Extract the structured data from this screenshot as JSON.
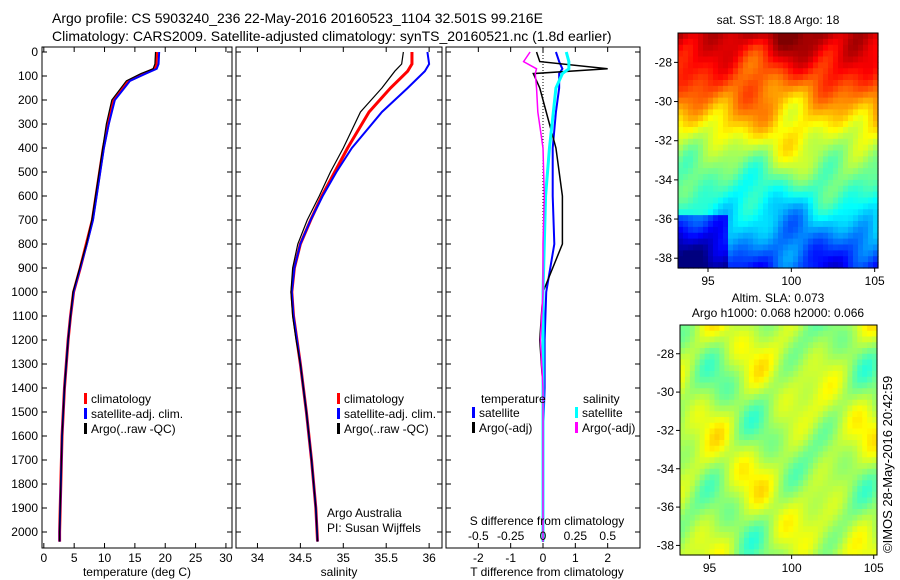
{
  "header": {
    "line1": "Argo profile: CS 5903240_236 22-May-2016 20160523_1104 32.501S 99.216E",
    "line2": "Climatology: CARS2009. Satellite-adjusted climatology: synTS_20160521.nc (1.8d earlier)"
  },
  "credit": "©IMOS 28-May-2016 20:42:59",
  "colors": {
    "climatology": "#ff0000",
    "satellite": "#0000ff",
    "argo": "#000000",
    "sal_satellite": "#00ffff",
    "sal_argo": "#ff00ff"
  },
  "chart_data": [
    {
      "type": "line",
      "name": "temperature",
      "xlabel": "temperature (deg C)",
      "ylabel": "",
      "xlim": [
        -0.3,
        31
      ],
      "ylim": [
        2060,
        0
      ],
      "xticks": [
        "0",
        "5",
        "10",
        "15",
        "20",
        "25",
        "30"
      ],
      "yticks": [
        "0",
        "100",
        "200",
        "300",
        "400",
        "500",
        "600",
        "700",
        "800",
        "900",
        "1000",
        "1100",
        "1200",
        "1300",
        "1400",
        "1500",
        "1600",
        "1700",
        "1800",
        "1900",
        "2000"
      ],
      "legend": [
        "climatology",
        "satellite-adj. clim.",
        "Argo(..raw -QC)"
      ],
      "depth": [
        0,
        50,
        70,
        90,
        120,
        200,
        300,
        400,
        500,
        600,
        700,
        800,
        900,
        1000,
        1100,
        1200,
        1300,
        1400,
        1500,
        1600,
        1800,
        2000,
        2040
      ],
      "series": [
        {
          "name": "climatology",
          "values": [
            18.6,
            18.5,
            18.3,
            16.5,
            14,
            11.5,
            10.6,
            9.8,
            9.2,
            8.6,
            8.0,
            7.0,
            6.0,
            4.9,
            4.4,
            4.0,
            3.7,
            3.4,
            3.2,
            3.0,
            2.8,
            2.6,
            2.6
          ]
        },
        {
          "name": "satellite-adj. clim.",
          "values": [
            19.0,
            18.9,
            18.6,
            16.8,
            14.2,
            11.7,
            10.7,
            9.9,
            9.3,
            8.7,
            8.1,
            7.1,
            6.0,
            4.9,
            4.4,
            4.0,
            3.7,
            3.4,
            3.2,
            3.0,
            2.8,
            2.6,
            2.6
          ]
        },
        {
          "name": "Argo(..raw -QC)",
          "values": [
            18.4,
            18.3,
            18.0,
            16.0,
            13.6,
            11.2,
            10.3,
            9.7,
            9.1,
            8.5,
            7.9,
            7.0,
            5.9,
            4.8,
            4.4,
            4.0,
            3.7,
            3.4,
            3.2,
            3.0,
            2.8,
            2.6,
            2.6
          ]
        }
      ]
    },
    {
      "type": "line",
      "name": "salinity",
      "xlabel": "salinity",
      "xlim": [
        33.75,
        36.15
      ],
      "ylim": [
        2060,
        0
      ],
      "xticks": [
        "34",
        "34.5",
        "35",
        "35.5",
        "36"
      ],
      "legend": [
        "climatology",
        "satellite-adj. clim.",
        "Argo(..raw -QC)"
      ],
      "annotation": [
        "Argo Australia",
        "PI: Susan Wijffels"
      ],
      "depth": [
        0,
        50,
        80,
        150,
        250,
        400,
        500,
        600,
        700,
        800,
        900,
        1000,
        1100,
        1200,
        1300,
        1500,
        1700,
        1900,
        2040
      ],
      "series": [
        {
          "name": "climatology",
          "values": [
            35.8,
            35.8,
            35.75,
            35.55,
            35.3,
            35.05,
            34.9,
            34.75,
            34.62,
            34.5,
            34.43,
            34.4,
            34.42,
            34.46,
            34.5,
            34.57,
            34.63,
            34.68,
            34.7
          ]
        },
        {
          "name": "satellite-adj. clim.",
          "values": [
            35.98,
            36.0,
            35.95,
            35.75,
            35.45,
            35.1,
            34.92,
            34.76,
            34.62,
            34.5,
            34.43,
            34.4,
            34.42,
            34.46,
            34.5,
            34.57,
            34.63,
            34.68,
            34.7
          ]
        },
        {
          "name": "Argo(..raw -QC)",
          "values": [
            35.7,
            35.68,
            35.6,
            35.45,
            35.2,
            35.0,
            34.85,
            34.72,
            34.58,
            34.47,
            34.41,
            34.39,
            34.41,
            34.45,
            34.5,
            34.57,
            34.63,
            34.68,
            34.7
          ]
        }
      ]
    },
    {
      "type": "line",
      "name": "differences",
      "xlabel": "T difference from climatology",
      "x2label": "S difference from climatology",
      "xlim": [
        -3,
        3
      ],
      "x2lim": [
        -0.75,
        0.75
      ],
      "ylim": [
        2060,
        0
      ],
      "xticks": [
        "-2",
        "-1",
        "0",
        "1",
        "2"
      ],
      "x2ticks": [
        "-0.5",
        "-0.25",
        "0",
        "0.25",
        "0.5"
      ],
      "legend_headers": [
        "temperature",
        "salinity"
      ],
      "legend": [
        "satellite",
        "Argo(-adj)",
        "satellite",
        "Argo(-adj)"
      ],
      "depth": [
        0,
        40,
        70,
        90,
        150,
        250,
        400,
        600,
        800,
        1000,
        1200,
        1400,
        1600,
        1800,
        2040
      ],
      "series": [
        {
          "name": "T satellite",
          "values": [
            0.4,
            0.5,
            0.6,
            0.5,
            0.5,
            0.4,
            0.3,
            0.3,
            0.35,
            0.1,
            0.05,
            0.05,
            0.0,
            0.0,
            0.0
          ]
        },
        {
          "name": "T Argo(-adj)",
          "values": [
            -0.2,
            -0.1,
            2.0,
            -0.3,
            -0.1,
            0.1,
            0.4,
            0.6,
            0.6,
            0.0,
            -0.1,
            0.0,
            0.0,
            0.0,
            0.0
          ]
        },
        {
          "name": "S satellite",
          "values": [
            0.18,
            0.2,
            0.2,
            0.15,
            0.1,
            0.08,
            0.05,
            0.02,
            0.01,
            0.0,
            0.0,
            0.0,
            0.0,
            0.0,
            0.0
          ]
        },
        {
          "name": "S Argo(-adj)",
          "values": [
            -0.1,
            -0.15,
            -0.05,
            -0.06,
            -0.05,
            -0.04,
            0.0,
            0.01,
            0.0,
            0.0,
            -0.02,
            0.0,
            0.0,
            0.0,
            0.0
          ]
        }
      ]
    },
    {
      "type": "heatmap",
      "name": "sst-map",
      "title": "sat. SST: 18.8 Argo: 18",
      "xlim": [
        93.2,
        105.2
      ],
      "ylim": [
        -38.5,
        -26.5
      ],
      "xticks": [
        "95",
        "100",
        "105"
      ],
      "yticks": [
        "-28",
        "-30",
        "-32",
        "-34",
        "-36",
        "-38"
      ]
    },
    {
      "type": "heatmap",
      "name": "sla-map",
      "title": "Altim. SLA: 0.073",
      "subtitle": "Argo h1000: 0.068 h2000: 0.066",
      "xlim": [
        93.2,
        105.2
      ],
      "ylim": [
        -38.5,
        -26.5
      ],
      "xticks": [
        "95",
        "100",
        "105"
      ],
      "yticks": [
        "-28",
        "-30",
        "-32",
        "-34",
        "-36",
        "-38"
      ]
    }
  ]
}
